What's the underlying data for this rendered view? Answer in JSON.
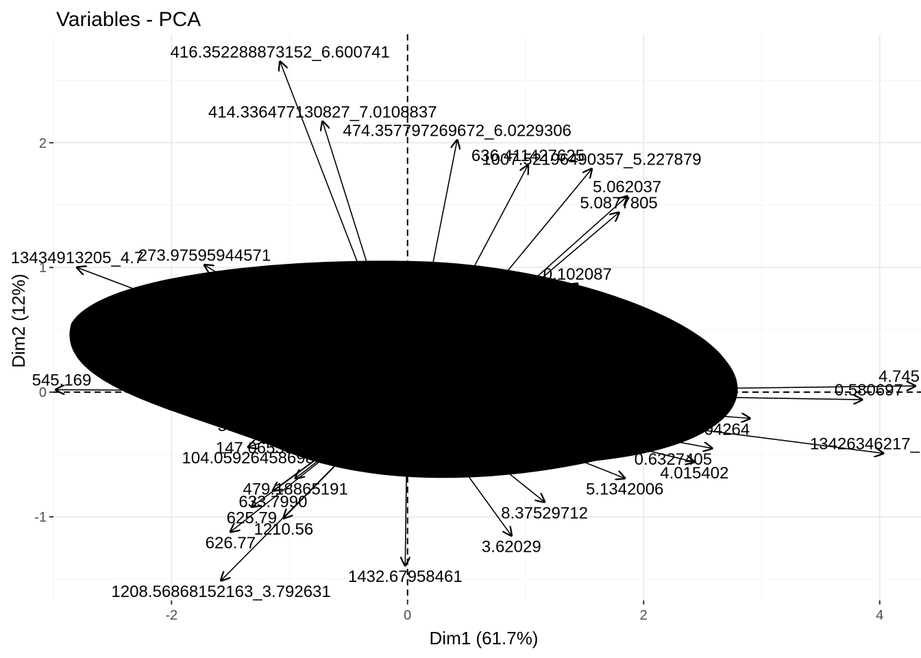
{
  "chart_data": {
    "type": "scatter",
    "title": "Variables - PCA",
    "xlabel": "Dim1 (61.7%)",
    "ylabel": "Dim2 (12%)",
    "xlim": [
      -3.0,
      4.35
    ],
    "ylim": [
      -1.67,
      2.87
    ],
    "x_ticks": [
      -2,
      0,
      2,
      4
    ],
    "y_ticks": [
      -1,
      0,
      1,
      2
    ],
    "x_tick_labels": [
      "-2",
      "0",
      "2",
      "4"
    ],
    "y_tick_labels": [
      "-1",
      "0",
      "1",
      "2"
    ],
    "grid": true,
    "reference_lines": {
      "x": 0,
      "y": 0,
      "style": "dashed"
    },
    "arrows": [
      {
        "label": "416.352288873152_6.600741",
        "x": -1.08,
        "y": 2.65
      },
      {
        "label": "474.357797269672_6.0229306",
        "x": 0.42,
        "y": 2.02
      },
      {
        "label": "414.336477130827_7.0108837",
        "x": -0.72,
        "y": 2.17
      },
      {
        "label": "1208.56868152163_3.792631",
        "x": -1.58,
        "y": -1.51
      },
      {
        "label": "479.18865191",
        "x": -0.95,
        "y": -0.69
      },
      {
        "label": "104.05926458698",
        "x": -1.35,
        "y": -0.44
      },
      {
        "label": "147.06550823",
        "x": -1.18,
        "y": -0.36
      },
      {
        "label": "371.35368",
        "x": -1.28,
        "y": -0.18
      },
      {
        "label": "273.97595944571",
        "x": -1.72,
        "y": 1.02
      },
      {
        "label": "636.411427625",
        "x": 1.02,
        "y": 1.82
      },
      {
        "label": "1007.52196490357_5.227879",
        "x": 1.56,
        "y": 1.79
      },
      {
        "label": "5.062037",
        "x": 1.86,
        "y": 1.57
      },
      {
        "label": "5.0877805",
        "x": 1.79,
        "y": 1.44
      },
      {
        "label": "0.102087",
        "x": 1.44,
        "y": 0.87
      },
      {
        "label": "4.7704264",
        "x": 2.9,
        "y": -0.21
      },
      {
        "label": "0.6327405",
        "x": 2.58,
        "y": -0.45
      },
      {
        "label": "4.015402",
        "x": 2.43,
        "y": -0.56
      },
      {
        "label": "5.1342006",
        "x": 1.84,
        "y": -0.69
      },
      {
        "label": "8.37529712",
        "x": 1.16,
        "y": -0.88
      },
      {
        "label": "3.62029",
        "x": 0.88,
        "y": -1.15
      },
      {
        "label": "1432.67958461",
        "x": -0.02,
        "y": -1.39
      },
      {
        "label": "13426346217_",
        "x": 4.03,
        "y": -0.49
      },
      {
        "label": "4.745",
        "x": 4.3,
        "y": 0.05
      },
      {
        "label": "0.580697",
        "x": 3.85,
        "y": -0.06
      },
      {
        "label": "13434913205_4.7",
        "x": -2.8,
        "y": 1.0
      },
      {
        "label": "545.169",
        "x": -2.98,
        "y": 0.02
      },
      {
        "label": "625.79",
        "x": -1.32,
        "y": -0.92
      },
      {
        "label": "633.7990",
        "x": -1.14,
        "y": -0.79
      },
      {
        "label": "1210.56",
        "x": -1.05,
        "y": -1.01
      },
      {
        "label": "626.77",
        "x": -1.5,
        "y": -1.12
      }
    ]
  }
}
